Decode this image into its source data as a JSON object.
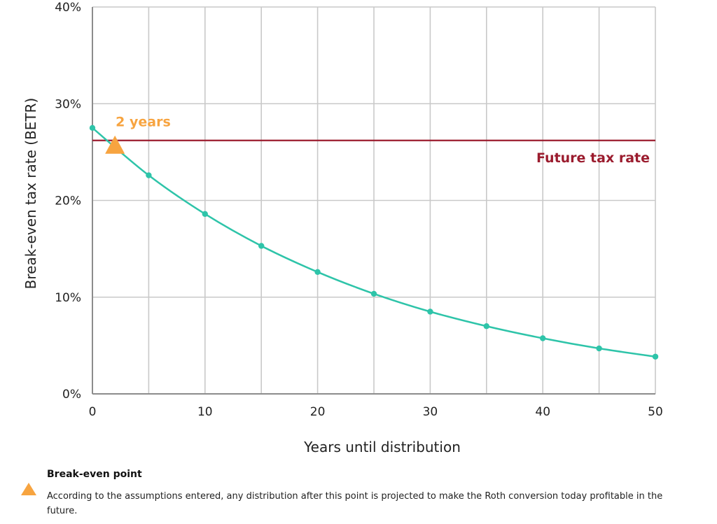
{
  "chart_data": {
    "type": "line",
    "xlabel": "Years until distribution",
    "ylabel": "Break-even tax rate (BETR)",
    "xlim": [
      0,
      50
    ],
    "ylim": [
      0,
      40
    ],
    "x_ticks": [
      "0",
      "10",
      "20",
      "30",
      "40",
      "50"
    ],
    "y_ticks": [
      "0%",
      "10%",
      "20%",
      "30%",
      "40%"
    ],
    "grid": true,
    "x_grid_step": 5,
    "series": [
      {
        "color": "#2ec4a9",
        "x": [
          0,
          5,
          10,
          15,
          20,
          25,
          30,
          35,
          40,
          45,
          50
        ],
        "y": [
          27.5,
          22.6,
          18.6,
          15.3,
          12.6,
          10.35,
          8.5,
          7.0,
          5.75,
          4.7,
          3.85
        ]
      }
    ],
    "reference_line": {
      "label": "Future tax rate",
      "y": 26.2,
      "color": "#9b1c2e"
    },
    "break_even": {
      "label": "2 years",
      "x": 2,
      "y": 25.7,
      "color": "#f7a440"
    }
  },
  "legend": {
    "title": "Break-even point",
    "text": "According to the assumptions entered, any distribution after this point is projected to make the Roth conversion today profitable in the future.",
    "icon": "orange-triangle-icon"
  }
}
